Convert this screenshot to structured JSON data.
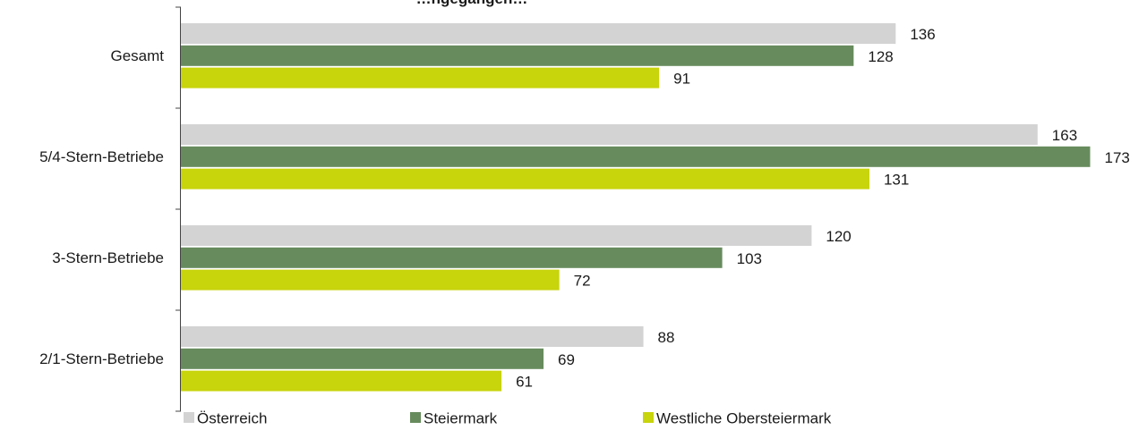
{
  "chart_data": {
    "type": "bar",
    "orientation": "horizontal",
    "title": "…ngegangen…",
    "categories": [
      "Gesamt",
      "5/4-Stern-Betriebe",
      "3-Stern-Betriebe",
      "2/1-Stern-Betriebe"
    ],
    "series": [
      {
        "name": "Österreich",
        "color": "#d3d3d3",
        "values": [
          136,
          163,
          120,
          88
        ]
      },
      {
        "name": "Steiermark",
        "color": "#678b5d",
        "values": [
          128,
          173,
          103,
          69
        ]
      },
      {
        "name": "Westliche Obersteiermark",
        "color": "#c8d40c",
        "values": [
          91,
          131,
          72,
          61
        ]
      }
    ],
    "xlim": [
      0,
      180
    ],
    "grid": false,
    "legend_position": "bottom"
  }
}
